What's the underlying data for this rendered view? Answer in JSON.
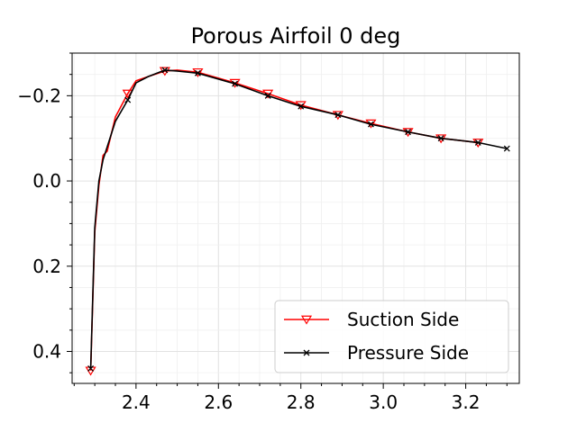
{
  "chart_data": {
    "type": "line",
    "title": "Porous Airfoil 0 deg",
    "xlabel": "",
    "ylabel": "",
    "xlim": [
      2.245,
      3.33
    ],
    "ylim": [
      0.475,
      -0.3
    ],
    "y_inverted": true,
    "x_ticks": [
      2.4,
      2.6,
      2.8,
      3.0,
      3.2
    ],
    "x_tick_labels": [
      "2.4",
      "2.6",
      "2.8",
      "3.0",
      "3.2"
    ],
    "y_ticks": [
      -0.2,
      0.0,
      0.2,
      0.4
    ],
    "y_tick_labels": [
      "−0.2",
      "0.0",
      "0.2",
      "0.4"
    ],
    "grid": true,
    "legend_position": "lower-right",
    "series": [
      {
        "name": "Suction Side",
        "color": "#ff0000",
        "marker": "triangle-down-open",
        "x": [
          2.29,
          2.3,
          2.31,
          2.32,
          2.33,
          2.35,
          2.38,
          2.4,
          2.43,
          2.47,
          2.5,
          2.55,
          2.64,
          2.72,
          2.8,
          2.89,
          2.97,
          3.06,
          3.14,
          3.23
        ],
        "y": [
          0.445,
          0.12,
          0.01,
          -0.06,
          -0.07,
          -0.15,
          -0.205,
          -0.235,
          -0.245,
          -0.258,
          -0.26,
          -0.255,
          -0.23,
          -0.205,
          -0.178,
          -0.155,
          -0.135,
          -0.115,
          -0.1,
          -0.09
        ],
        "marker_x": [
          2.29,
          2.38,
          2.47,
          2.55,
          2.64,
          2.72,
          2.8,
          2.89,
          2.97,
          3.06,
          3.14,
          3.23
        ],
        "marker_y": [
          0.445,
          -0.205,
          -0.258,
          -0.255,
          -0.23,
          -0.205,
          -0.178,
          -0.155,
          -0.135,
          -0.115,
          -0.1,
          -0.09
        ]
      },
      {
        "name": "Pressure Side",
        "color": "#000000",
        "marker": "x",
        "x": [
          2.29,
          2.3,
          2.31,
          2.32,
          2.33,
          2.35,
          2.38,
          2.4,
          2.43,
          2.47,
          2.5,
          2.55,
          2.64,
          2.72,
          2.8,
          2.89,
          2.97,
          3.06,
          3.14,
          3.23,
          3.3
        ],
        "y": [
          0.44,
          0.11,
          0.0,
          -0.05,
          -0.08,
          -0.14,
          -0.19,
          -0.23,
          -0.245,
          -0.26,
          -0.258,
          -0.253,
          -0.228,
          -0.2,
          -0.175,
          -0.155,
          -0.133,
          -0.115,
          -0.1,
          -0.09,
          -0.076
        ],
        "marker_x": [
          2.29,
          2.38,
          2.47,
          2.55,
          2.64,
          2.72,
          2.8,
          2.89,
          2.97,
          3.06,
          3.14,
          3.23,
          3.3
        ],
        "marker_y": [
          0.44,
          -0.19,
          -0.26,
          -0.253,
          -0.228,
          -0.2,
          -0.175,
          -0.155,
          -0.133,
          -0.115,
          -0.1,
          -0.09,
          -0.076
        ]
      }
    ]
  }
}
